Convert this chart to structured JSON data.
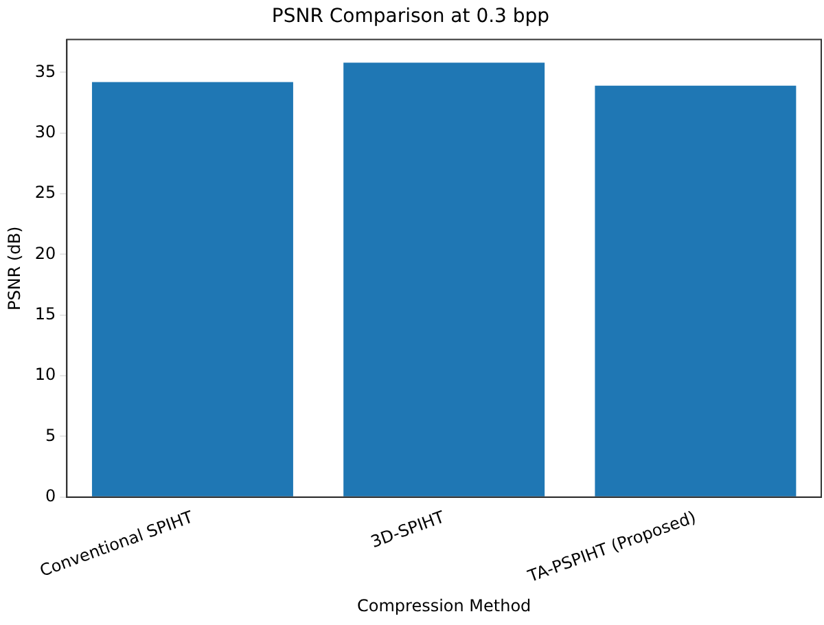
{
  "chart_data": {
    "type": "bar",
    "title": "PSNR Comparison at 0.3 bpp",
    "xlabel": "Compression Method",
    "ylabel": "PSNR (dB)",
    "categories": [
      "Conventional SPIHT",
      "3D-SPIHT",
      "TA-PSPIHT (Proposed)"
    ],
    "values": [
      34.2,
      35.8,
      33.9
    ],
    "color": "#1f77b4",
    "ylim": [
      0,
      37.7
    ],
    "yticks": [
      0,
      5,
      10,
      15,
      20,
      25,
      30,
      35
    ],
    "grid": false,
    "legend": false
  }
}
